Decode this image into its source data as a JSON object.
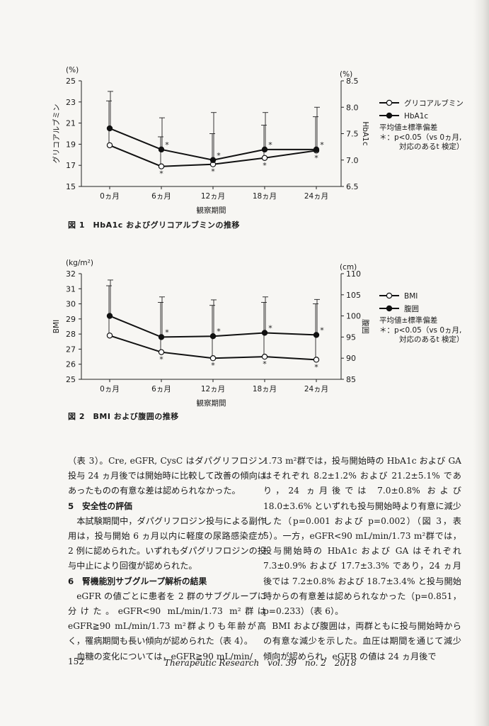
{
  "figure1": {
    "caption": "図 1　HbA1c およびグリコアルブミンの推移",
    "y_unit_left": "(%)",
    "y_unit_right": "(%)",
    "ylabel_left": "グリコアルブミン",
    "ylabel_right": "HbA1c",
    "xlabel": "観察期間",
    "legend": [
      "グリコアルブミン",
      "HbA1c"
    ],
    "note_line1": "平均値±標準偏差",
    "note_line2": "＊：p<0.05（vs 0ヵ月,",
    "note_line3": "対応のあるt 検定）"
  },
  "figure2": {
    "caption": "図 2　BMI および腹囲の推移",
    "y_unit_left": "(kg/m²)",
    "y_unit_right": "(cm)",
    "ylabel_left": "BMI",
    "ylabel_right": "腹囲",
    "xlabel": "観察期間",
    "legend": [
      "BMI",
      "腹囲"
    ],
    "note_line1": "平均値±標準偏差",
    "note_line2": "＊：p<0.05（vs 0ヵ月,",
    "note_line3": "対応のあるt 検定）"
  },
  "chart_data": [
    {
      "type": "line",
      "categories": [
        "0ヵ月",
        "6ヵ月",
        "12ヵ月",
        "18ヵ月",
        "24ヵ月"
      ],
      "xlabel": "観察期間",
      "ylabel": "グリコアルブミン",
      "ylabel_right": "HbA1c",
      "ylim": [
        15,
        25
      ],
      "ylim_right": [
        6.5,
        8.5
      ],
      "yticks": [
        15,
        17,
        19,
        21,
        23,
        25
      ],
      "yticks_right": [
        "6.5",
        "7.0",
        "7.5",
        "8.0",
        "8.5"
      ],
      "series": [
        {
          "name": "グリコアルブミン",
          "axis": "left",
          "marker": "open",
          "values": [
            18.9,
            16.9,
            17.1,
            17.7,
            18.4
          ],
          "sd_upper": [
            23.1,
            19.7,
            20.0,
            20.8,
            21.6
          ],
          "significant": [
            false,
            true,
            true,
            true,
            true
          ]
        },
        {
          "name": "HbA1c",
          "axis": "right",
          "marker": "filled",
          "values": [
            7.6,
            7.2,
            7.0,
            7.2,
            7.2
          ],
          "sd_upper": [
            8.3,
            7.8,
            7.9,
            7.9,
            8.0
          ],
          "significant": [
            false,
            true,
            true,
            true,
            true
          ]
        }
      ],
      "legend_position": "right"
    },
    {
      "type": "line",
      "categories": [
        "0ヵ月",
        "6ヵ月",
        "12ヵ月",
        "18ヵ月",
        "24ヵ月"
      ],
      "xlabel": "観察期間",
      "ylabel": "BMI",
      "ylabel_right": "腹囲",
      "ylim": [
        25,
        32
      ],
      "ylim_right": [
        85,
        110
      ],
      "yticks": [
        25,
        26,
        27,
        28,
        29,
        30,
        31,
        32
      ],
      "yticks_right": [
        "85",
        "90",
        "95",
        "100",
        "105",
        "110"
      ],
      "series": [
        {
          "name": "BMI",
          "axis": "left",
          "marker": "open",
          "values": [
            27.9,
            26.8,
            26.4,
            26.5,
            26.3
          ],
          "sd_upper": [
            31.2,
            30.1,
            29.9,
            30.1,
            30.0
          ],
          "significant": [
            false,
            true,
            true,
            true,
            true
          ]
        },
        {
          "name": "腹囲",
          "axis": "right",
          "marker": "filled",
          "values": [
            100.0,
            95.0,
            95.2,
            96.0,
            95.5
          ],
          "sd_upper": [
            108.5,
            104.5,
            103.8,
            104.5,
            103.9
          ],
          "significant": [
            false,
            true,
            true,
            true,
            true
          ]
        }
      ],
      "legend_position": "right"
    }
  ],
  "left_column": [
    {
      "type": "p",
      "text": "（表 3）。Cre, eGFR, CysC はダパグリフロジン投与 24 ヵ月後では開始時に比較して改善の傾向はあったものの有意な差は認められなかった。"
    },
    {
      "type": "h",
      "text": "5　安全性の評価"
    },
    {
      "type": "pi",
      "text": "本試験期間中，ダパグリフロジン投与による副作用は，投与開始 6 ヵ月以内に軽度の尿路感染症が 2 例に認められた。いずれもダパグリフロジンの投与中止により回復が認められた。"
    },
    {
      "type": "h",
      "text": "6　腎機能別サブグループ解析の結果"
    },
    {
      "type": "pi",
      "text": "eGFR の値ごとに患者を 2 群のサブグループに分けた。eGFR<90 mL/min/1.73 m²群は eGFR≧90 mL/min/1.73 m²群よりも年齢が高く，罹病期間も長い傾向が認められた（表 4）。"
    },
    {
      "type": "pi",
      "text": "血糖の変化については，eGFR≧90 mL/min/"
    }
  ],
  "right_column": [
    {
      "type": "p",
      "text": "1.73 m²群では，投与開始時の HbA1c および GA はそれぞれ 8.2±1.2% および 21.2±5.1% であり，24 ヵ月後では 7.0±0.8% および 18.0±3.6% といずれも投与開始時より有意に減少した（p=0.001 および p=0.002）（図 3，表 5）。一方，eGFR<90 mL/min/1.73 m²群では，投与開始時の HbA1c および GA はそれぞれ 7.3±0.9% および 17.7±3.3% であり，24 ヵ月後では 7.2±0.8% および 18.7±3.4% と投与開始時からの有意差は認められなかった（p=0.851，p=0.233）（表 6）。"
    },
    {
      "type": "pi",
      "text": "BMI および腹囲は，両群ともに投与開始時からの有意な減少を示した。血圧は期間を通じて減少傾向が認められ，eGFR の値は 24 ヵ月後で"
    }
  ],
  "footer": {
    "page_number": "152",
    "journal": "Therapeutic Research　vol. 39　no. 2　2018"
  }
}
